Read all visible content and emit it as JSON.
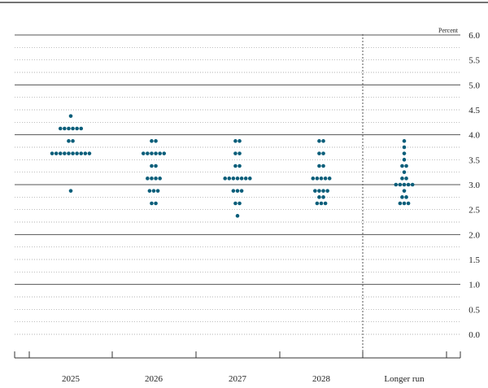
{
  "chart_data": {
    "type": "scatter",
    "ylabel": "Percent",
    "ylim": [
      0,
      6
    ],
    "ytick_labels": [
      "0.0",
      "0.5",
      "1.0",
      "1.5",
      "2.0",
      "2.5",
      "3.0",
      "3.5",
      "4.0",
      "4.5",
      "5.0",
      "5.5",
      "6.0"
    ],
    "categories": [
      "2025",
      "2026",
      "2027",
      "2028",
      "Longer run"
    ],
    "grid": true,
    "colors": {
      "dot": "#0b5e7a",
      "grid": "#999999",
      "major": "#555555",
      "axis": "#333333"
    },
    "series": [
      {
        "category": "2025",
        "points": [
          {
            "y": 4.375,
            "count": 1
          },
          {
            "y": 4.125,
            "count": 6
          },
          {
            "y": 3.875,
            "count": 2
          },
          {
            "y": 3.625,
            "count": 10
          },
          {
            "y": 2.875,
            "count": 1
          }
        ]
      },
      {
        "category": "2026",
        "points": [
          {
            "y": 3.875,
            "count": 2
          },
          {
            "y": 3.625,
            "count": 6
          },
          {
            "y": 3.375,
            "count": 2
          },
          {
            "y": 3.125,
            "count": 4
          },
          {
            "y": 2.875,
            "count": 3
          },
          {
            "y": 2.625,
            "count": 2
          }
        ]
      },
      {
        "category": "2027",
        "points": [
          {
            "y": 3.875,
            "count": 2
          },
          {
            "y": 3.625,
            "count": 2
          },
          {
            "y": 3.375,
            "count": 2
          },
          {
            "y": 3.125,
            "count": 7
          },
          {
            "y": 2.875,
            "count": 3
          },
          {
            "y": 2.625,
            "count": 2
          },
          {
            "y": 2.375,
            "count": 1
          }
        ]
      },
      {
        "category": "2028",
        "points": [
          {
            "y": 3.875,
            "count": 2
          },
          {
            "y": 3.625,
            "count": 2
          },
          {
            "y": 3.375,
            "count": 2
          },
          {
            "y": 3.125,
            "count": 5
          },
          {
            "y": 2.875,
            "count": 4
          },
          {
            "y": 2.75,
            "count": 2
          },
          {
            "y": 2.625,
            "count": 3
          }
        ]
      },
      {
        "category": "Longer run",
        "points": [
          {
            "y": 3.875,
            "count": 1
          },
          {
            "y": 3.75,
            "count": 1
          },
          {
            "y": 3.625,
            "count": 1
          },
          {
            "y": 3.5,
            "count": 1
          },
          {
            "y": 3.375,
            "count": 2
          },
          {
            "y": 3.25,
            "count": 1
          },
          {
            "y": 3.125,
            "count": 2
          },
          {
            "y": 3.0,
            "count": 5
          },
          {
            "y": 2.875,
            "count": 1
          },
          {
            "y": 2.75,
            "count": 2
          },
          {
            "y": 2.625,
            "count": 3
          }
        ]
      }
    ]
  }
}
